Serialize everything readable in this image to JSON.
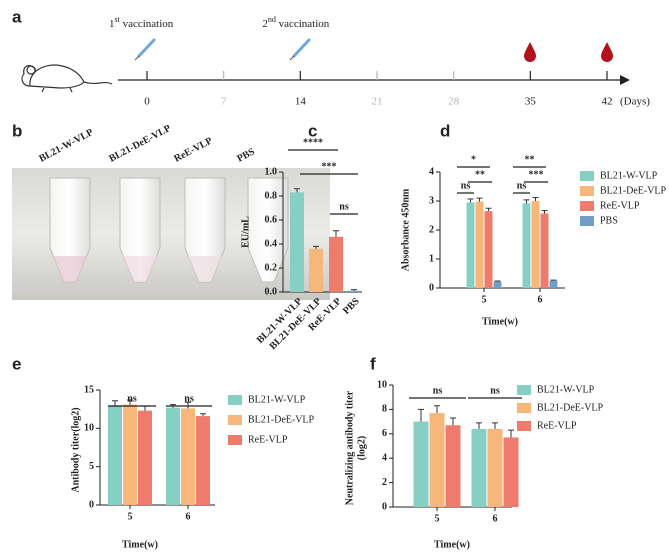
{
  "panel_labels": [
    "a",
    "b",
    "c",
    "d",
    "e",
    "f"
  ],
  "timeline": {
    "ticks": [
      0,
      7,
      14,
      21,
      28,
      35,
      42
    ],
    "tick_colors": [
      "#222222",
      "#b5b5b5",
      "#222222",
      "#b5b5b5",
      "#b5b5b5",
      "#222222",
      "#222222"
    ],
    "unit": "(Days)",
    "vaccinations": [
      {
        "ordinal": "1",
        "suffix": "st",
        "text": " vaccination"
      },
      {
        "ordinal": "2",
        "suffix": "nd",
        "text": " vaccination"
      }
    ]
  },
  "photo": {
    "labels": [
      "BL21-W-VLP",
      "BL21-DeE-VLP",
      "ReE-VLP",
      "PBS"
    ]
  },
  "chart_data": [
    {
      "type": "bar",
      "y_label": "EU/mL",
      "categories": [
        "BL21-W-VLP",
        "BL21-DeE-VLP",
        "ReE-VLP",
        "PBS"
      ],
      "values": [
        0.83,
        0.36,
        0.46,
        0.01
      ],
      "errors": [
        0.03,
        0.02,
        0.05,
        0.01
      ],
      "colors": [
        "#86d0c3",
        "#f7b77a",
        "#ee7b6c",
        "#6f9fc6"
      ],
      "ylim": [
        0,
        1
      ],
      "yticks": [
        {
          "value": 0,
          "label": "0.0"
        },
        {
          "value": 0.2,
          "label": "0.2"
        },
        {
          "value": 0.4,
          "label": "0.4"
        },
        {
          "value": 0.6,
          "label": "0.6"
        },
        {
          "value": 0.8,
          "label": "0.8"
        },
        {
          "value": 1,
          "label": "1.0"
        }
      ],
      "annotations": [
        "****",
        "***",
        "ns"
      ]
    },
    {
      "type": "grouped_bar",
      "x_label": "Time(w)",
      "y_label": "Absorbance 450nm",
      "categories": [
        "5",
        "6"
      ],
      "series": [
        {
          "name": "BL21-W-VLP",
          "color": "#86d0c3",
          "values": [
            2.95,
            2.92
          ],
          "errors": [
            0.12,
            0.12
          ]
        },
        {
          "name": "BL21-DeE-VLP",
          "color": "#f7b77a",
          "values": [
            2.98,
            3.0
          ],
          "errors": [
            0.12,
            0.12
          ]
        },
        {
          "name": "ReE-VLP",
          "color": "#ee7b6c",
          "values": [
            2.65,
            2.57
          ],
          "errors": [
            0.1,
            0.1
          ]
        },
        {
          "name": "PBS",
          "color": "#6f9fc6",
          "values": [
            0.22,
            0.25
          ],
          "errors": [
            0.02,
            0.02
          ]
        }
      ],
      "ylim": [
        0,
        4
      ],
      "yticks": [
        0,
        1,
        2,
        3,
        4
      ],
      "annotations": [
        "*",
        "ns",
        "**",
        "**",
        "ns",
        "***"
      ],
      "legend": "right"
    },
    {
      "type": "grouped_bar",
      "x_label": "Time(w)",
      "y_label": "Antibody titer(log2)",
      "categories": [
        "5",
        "6"
      ],
      "series": [
        {
          "name": "BL21-W-VLP",
          "color": "#86d0c3",
          "values": [
            13.0,
            12.7
          ],
          "errors": [
            0.6,
            0.4
          ]
        },
        {
          "name": "BL21-DeE-VLP",
          "color": "#f7b77a",
          "values": [
            13.1,
            12.6
          ],
          "errors": [
            0.6,
            0.8
          ]
        },
        {
          "name": "ReE-VLP",
          "color": "#ee7b6c",
          "values": [
            12.3,
            11.6
          ],
          "errors": [
            0.6,
            0.3
          ]
        }
      ],
      "ylim": [
        0,
        15
      ],
      "yticks": [
        0,
        5,
        10,
        15
      ],
      "annotations": [
        "ns",
        "ns"
      ],
      "legend": "right"
    },
    {
      "type": "grouped_bar",
      "x_label": "Time(w)",
      "y_label": [
        "Neutralizing antibody titer",
        "(log2)"
      ],
      "categories": [
        "5",
        "6"
      ],
      "series": [
        {
          "name": "BL21-W-VLP",
          "color": "#86d0c3",
          "values": [
            7.0,
            6.4
          ],
          "errors": [
            1.0,
            0.5
          ]
        },
        {
          "name": "BL21-DeE-VLP",
          "color": "#f7b77a",
          "values": [
            7.7,
            6.4
          ],
          "errors": [
            0.6,
            0.5
          ]
        },
        {
          "name": "ReE-VLP",
          "color": "#ee7b6c",
          "values": [
            6.7,
            5.7
          ],
          "errors": [
            0.6,
            0.6
          ]
        }
      ],
      "ylim": [
        0,
        10
      ],
      "yticks": [
        0,
        2,
        4,
        6,
        8,
        10
      ],
      "annotations": [
        "ns",
        "ns"
      ],
      "legend": "right"
    }
  ]
}
